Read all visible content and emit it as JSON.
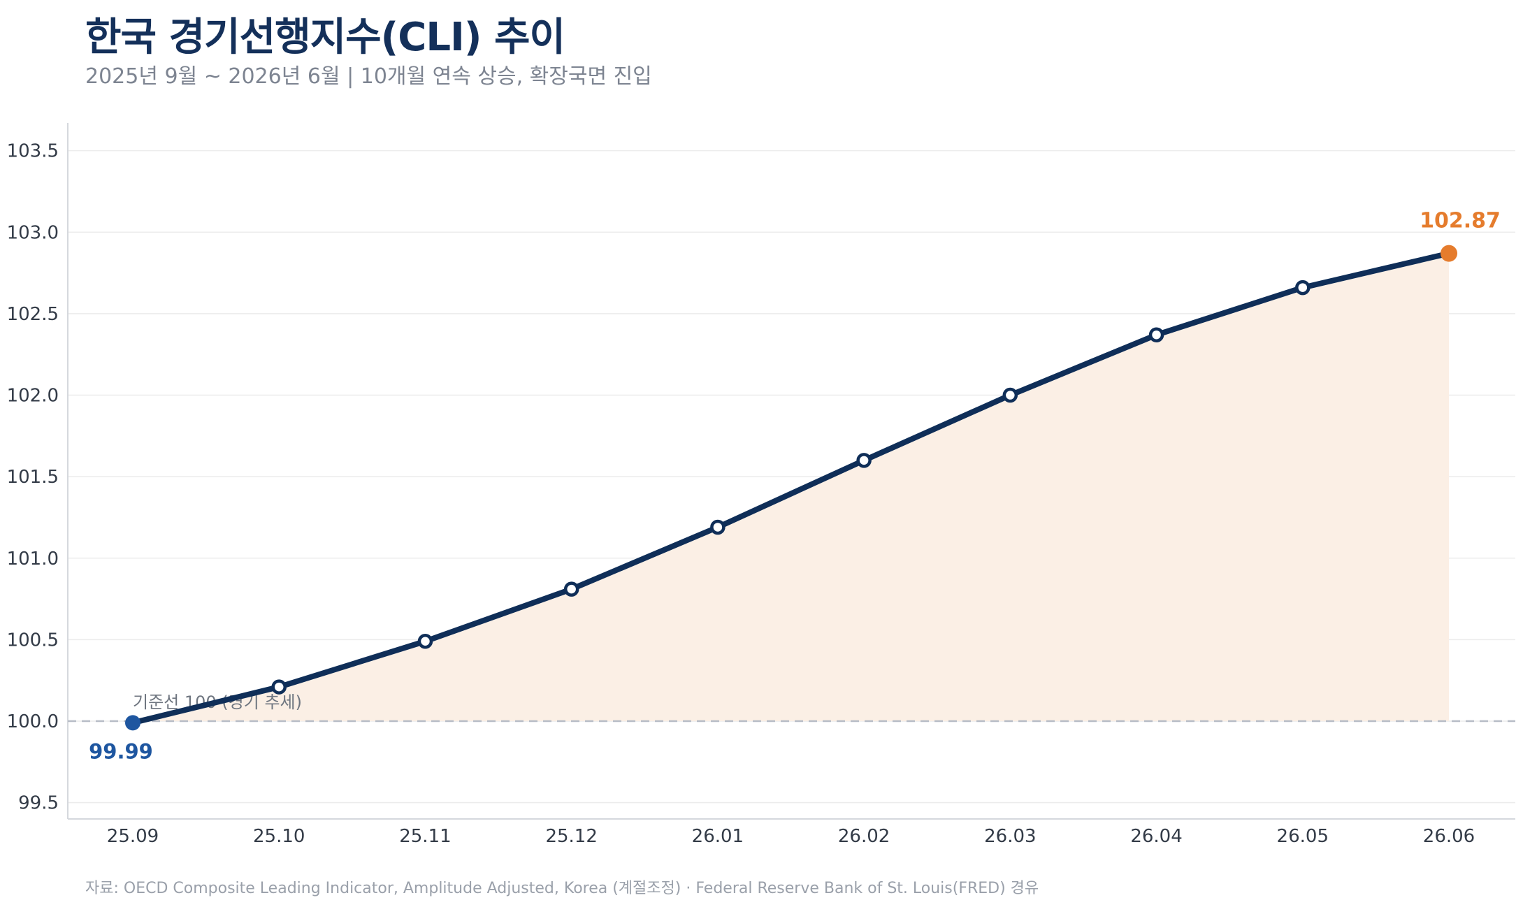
{
  "header": {
    "title": "한국 경기선행지수(CLI) 추이",
    "subtitle": "2025년 9월 ~ 2026년 6월 | 10개월 연속 상승, 확장국면 진입"
  },
  "footer": {
    "source": "자료: OECD Composite Leading Indicator, Amplitude Adjusted, Korea (계절조정) · Federal Reserve Bank of St. Louis(FRED) 경유"
  },
  "chart_data": {
    "type": "line",
    "categories": [
      "25.09",
      "25.10",
      "25.11",
      "25.12",
      "26.01",
      "26.02",
      "26.03",
      "26.04",
      "26.05",
      "26.06"
    ],
    "values": [
      99.99,
      100.21,
      100.49,
      100.81,
      101.19,
      101.6,
      102.0,
      102.37,
      102.66,
      102.87
    ],
    "ylim": [
      99.4,
      103.67
    ],
    "yticks": [
      "99.5",
      "100.0",
      "100.5",
      "101.0",
      "101.5",
      "102.0",
      "102.5",
      "103.0",
      "103.5"
    ],
    "reference_line": {
      "value": 100,
      "label": "기준선 100 (경기 추세)"
    },
    "start_label": "99.99",
    "end_label": "102.87",
    "grid": true,
    "colors": {
      "line": "#0f2e58",
      "area": "#fbefe5",
      "start_point": "#1e56a0",
      "end_point": "#e57c2d",
      "reference": "#b7bcc6",
      "grid": "#ececec"
    }
  }
}
